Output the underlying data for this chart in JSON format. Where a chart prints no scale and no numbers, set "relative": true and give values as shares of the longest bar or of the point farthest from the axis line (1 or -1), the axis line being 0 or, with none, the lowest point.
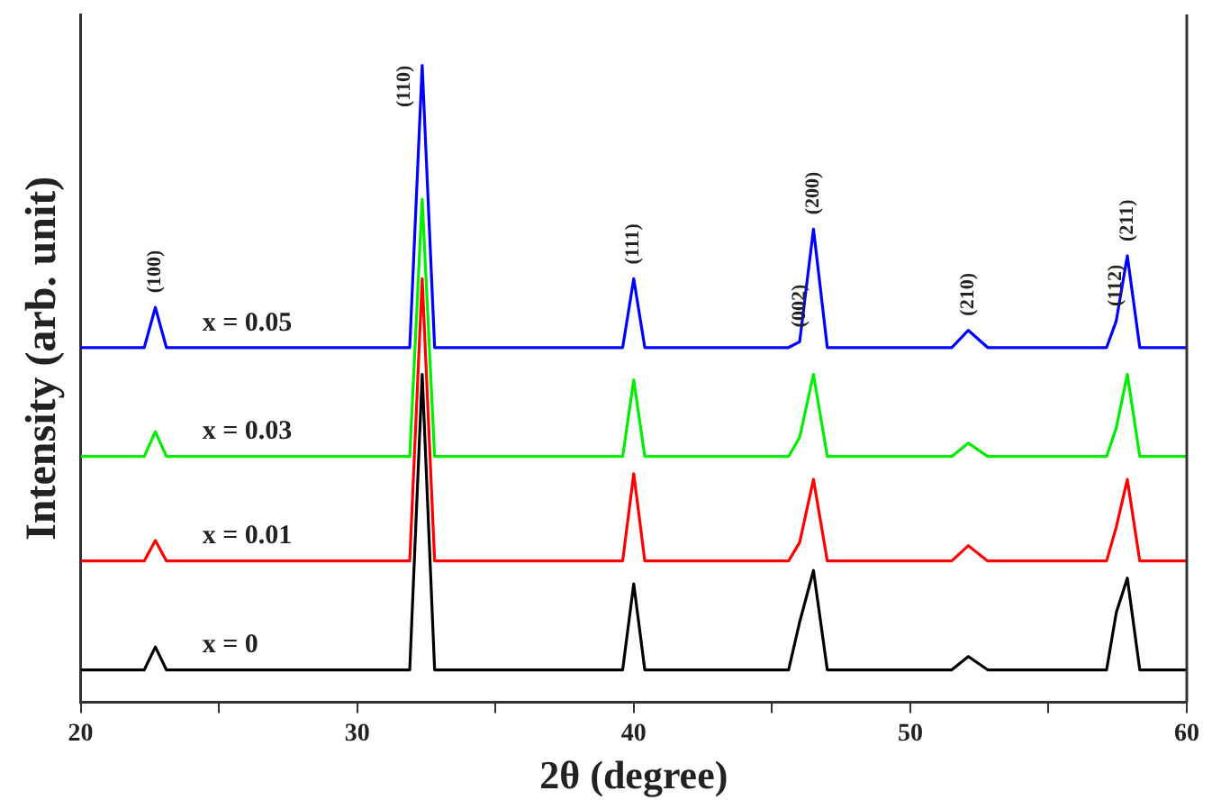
{
  "chart_data": {
    "type": "line",
    "xlabel": "2θ (degree)",
    "ylabel": "Intensity (arb. unit)",
    "relative": true,
    "xlim": [
      20,
      60
    ],
    "xticks": [
      20,
      {
        "value": 25,
        "label": null
      },
      30,
      {
        "value": 35,
        "label": null
      },
      40,
      {
        "value": 45,
        "label": null
      },
      50,
      {
        "value": 55,
        "label": null
      },
      60
    ],
    "x": [
      20,
      22.3,
      22.7,
      23.1,
      31.9,
      32.35,
      32.8,
      39.6,
      40.0,
      40.4,
      45.6,
      46.0,
      46.5,
      47.0,
      51.5,
      52.1,
      52.8,
      57.1,
      57.45,
      57.85,
      58.3,
      60
    ],
    "series": [
      {
        "name": "x = 0.05",
        "color": "#0000ff",
        "values": [
          0.557,
          0.557,
          0.62,
          0.557,
          0.557,
          1.0,
          0.557,
          0.557,
          0.665,
          0.557,
          0.557,
          0.566,
          0.743,
          0.557,
          0.557,
          0.584,
          0.557,
          0.557,
          0.599,
          0.701,
          0.557,
          0.557
        ]
      },
      {
        "name": "x = 0.03",
        "color": "#00ee00",
        "values": [
          0.386,
          0.386,
          0.425,
          0.386,
          0.386,
          0.79,
          0.386,
          0.386,
          0.506,
          0.386,
          0.386,
          0.416,
          0.515,
          0.386,
          0.386,
          0.407,
          0.386,
          0.386,
          0.431,
          0.515,
          0.386,
          0.386
        ]
      },
      {
        "name": "x = 0.01",
        "color": "#ff0000",
        "values": [
          0.222,
          0.222,
          0.254,
          0.222,
          0.222,
          0.665,
          0.222,
          0.222,
          0.359,
          0.222,
          0.222,
          0.251,
          0.35,
          0.222,
          0.222,
          0.246,
          0.222,
          0.222,
          0.275,
          0.35,
          0.222,
          0.222
        ]
      },
      {
        "name": "x = 0",
        "color": "#000000",
        "values": [
          0.051,
          0.051,
          0.087,
          0.051,
          0.051,
          0.515,
          0.051,
          0.051,
          0.186,
          0.051,
          0.051,
          0.126,
          0.207,
          0.051,
          0.051,
          0.072,
          0.051,
          0.051,
          0.141,
          0.195,
          0.051,
          0.051
        ]
      }
    ],
    "annotations": [
      {
        "text": "(100)",
        "x": 22.7,
        "y": 0.62
      },
      {
        "text": "(110)",
        "x": 32.35,
        "y": 1.0
      },
      {
        "text": "(111)",
        "x": 40.0,
        "y": 0.665
      },
      {
        "text": "(002)",
        "x": 46.0,
        "y": 0.566
      },
      {
        "text": "(200)",
        "x": 46.5,
        "y": 0.743
      },
      {
        "text": "(210)",
        "x": 52.1,
        "y": 0.584
      },
      {
        "text": "(112)",
        "x": 57.45,
        "y": 0.599
      },
      {
        "text": "(211)",
        "x": 57.85,
        "y": 0.701
      }
    ],
    "legend": false,
    "grid": false
  }
}
